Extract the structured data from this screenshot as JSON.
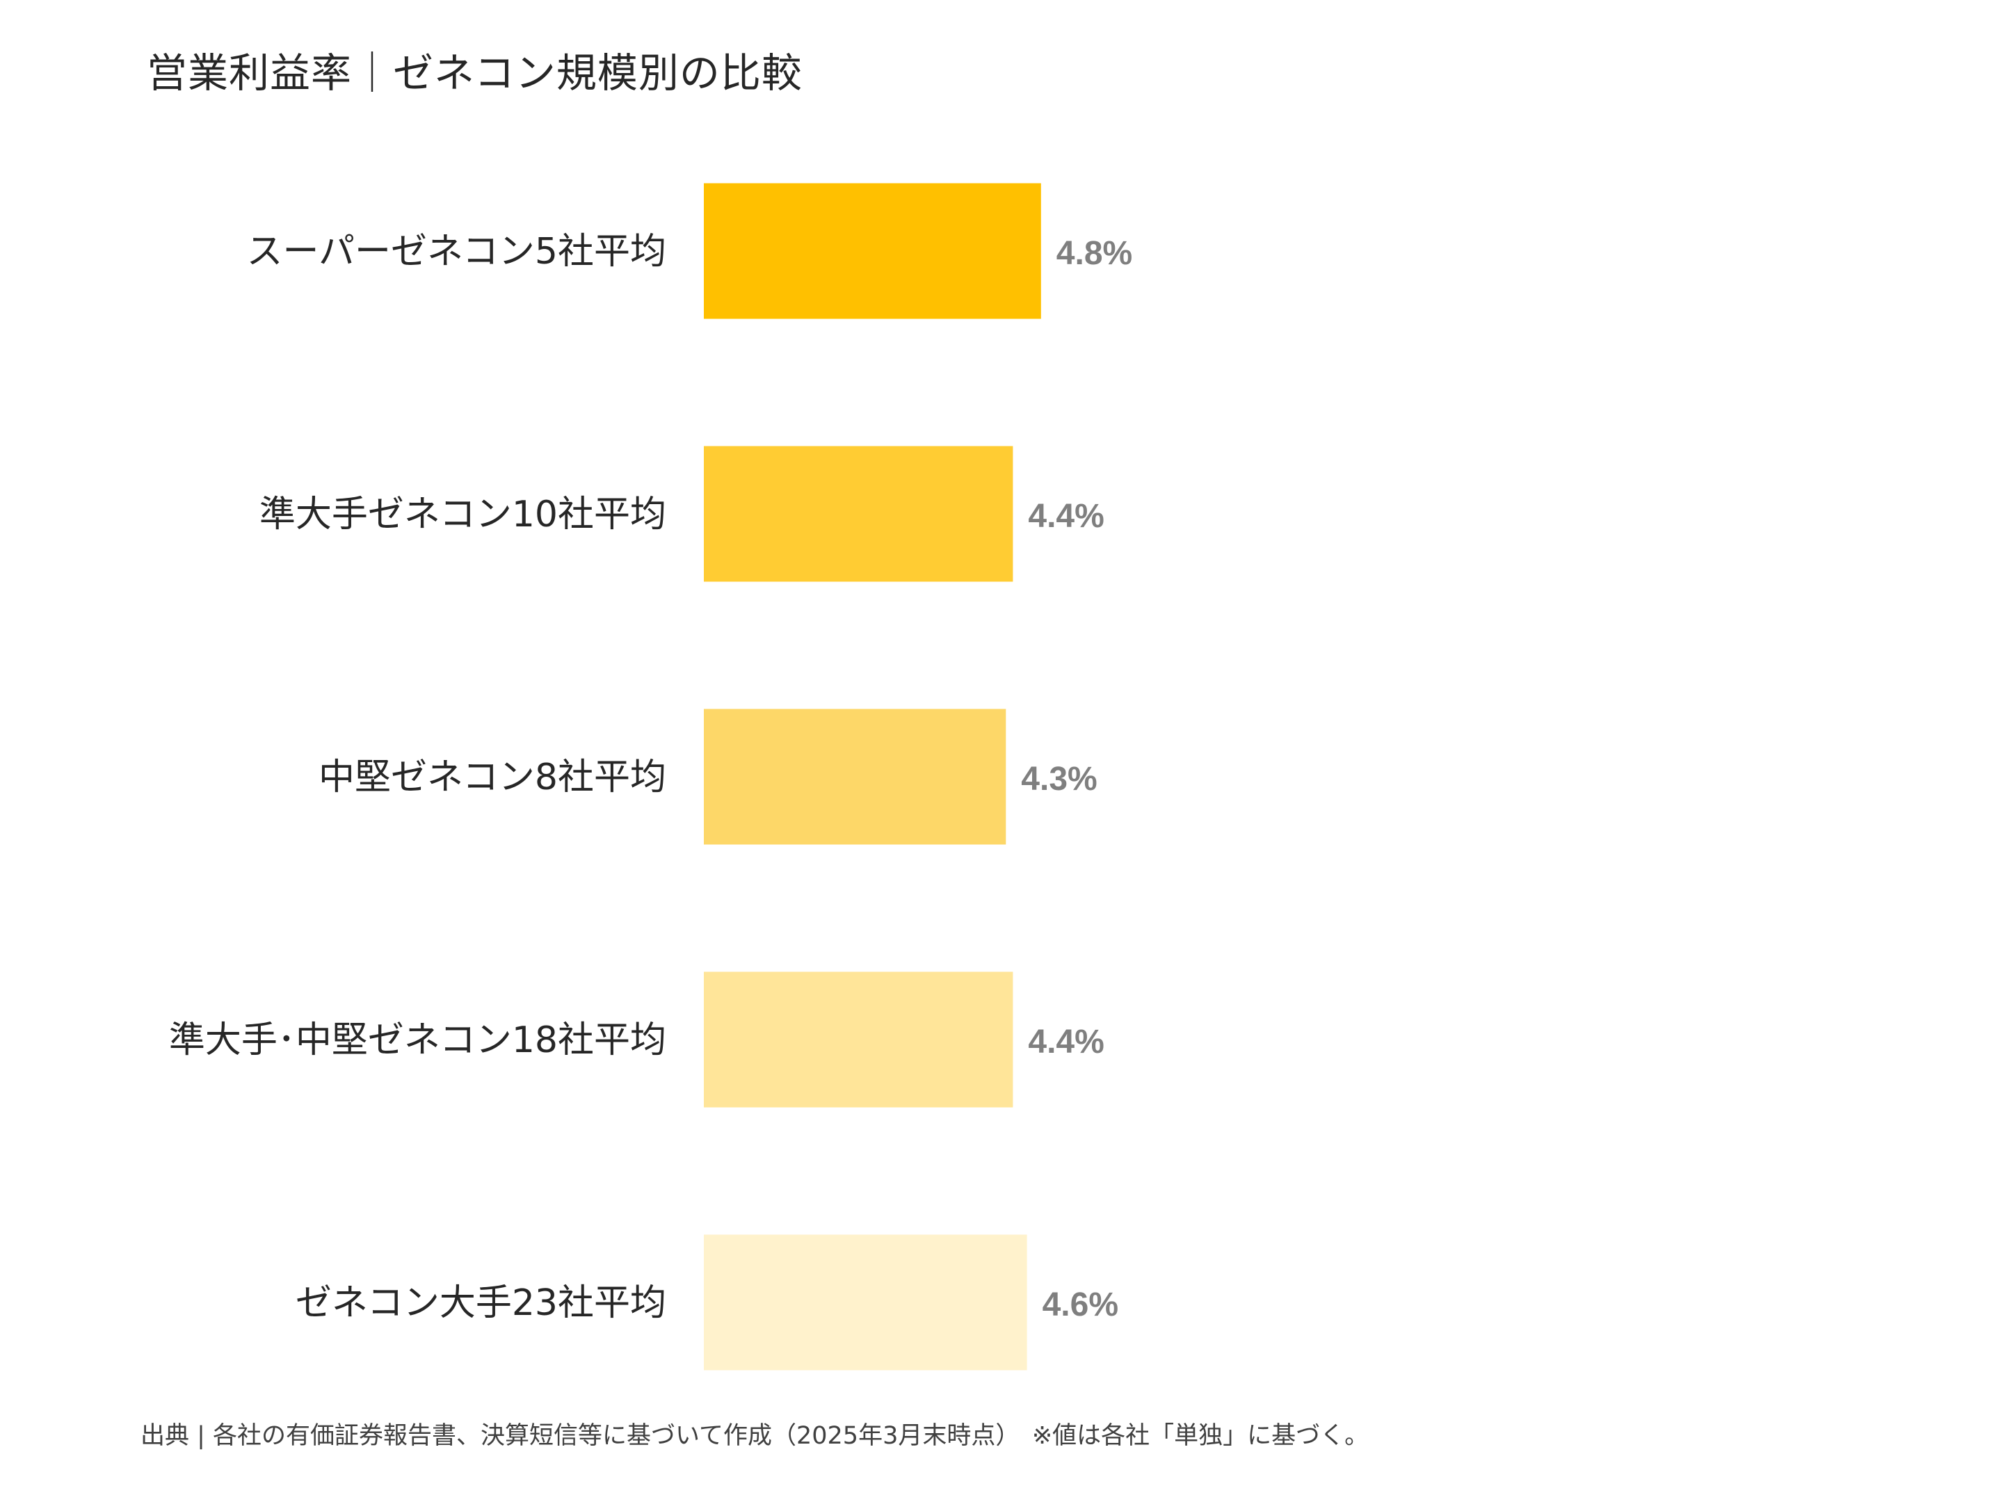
{
  "chart_data": {
    "type": "bar",
    "orientation": "horizontal",
    "title": "営業利益率｜ゼネコン規模別の比較",
    "categories": [
      "スーパーゼネコン5社平均",
      "準大手ゼネコン10社平均",
      "中堅ゼネコン8社平均",
      "準大手･中堅ゼネコン18社平均",
      "ゼネコン大手23社平均"
    ],
    "values": [
      4.8,
      4.4,
      4.3,
      4.4,
      4.6
    ],
    "value_labels": [
      "4.8%",
      "4.4%",
      "4.3%",
      "4.4%",
      "4.6%"
    ],
    "colors": [
      "#FFC000",
      "#FFCC33",
      "#FDD768",
      "#FFE599",
      "#FFF2CC"
    ],
    "label_color": "#7F7F7F",
    "xlim": [
      0,
      24
    ],
    "grid": false,
    "legend": "none",
    "source": "出典 | 各社の有価証券報告書、決算短信等に基づいて作成（2025年3月末時点）　※値は各社「単独」に基づく。"
  }
}
